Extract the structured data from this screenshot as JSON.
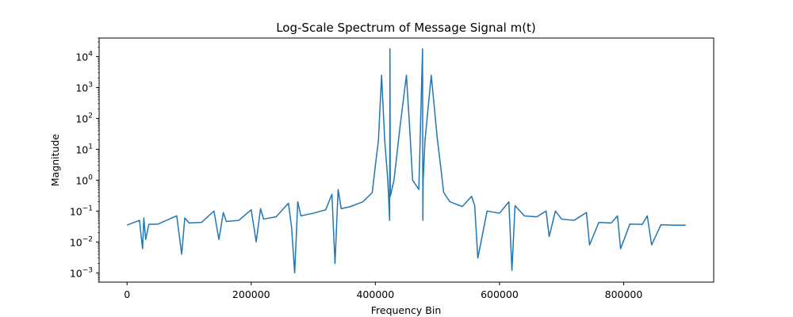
{
  "chart_data": {
    "type": "line",
    "title": "Log-Scale Spectrum of Message Signal m(t)",
    "xlabel": "Frequency Bin",
    "ylabel": "Magnitude",
    "xlim": [
      -45000,
      945000
    ],
    "ylim": [
      0.0005,
      40000
    ],
    "yscale": "log",
    "grid": false,
    "x_ticks": [
      0,
      200000,
      400000,
      600000,
      800000
    ],
    "x_tick_labels": [
      "0",
      "200000",
      "400000",
      "600000",
      "800000"
    ],
    "y_ticks": [
      0.001,
      0.01,
      0.1,
      1,
      10,
      100,
      1000,
      10000
    ],
    "y_tick_labels": [
      {
        "base": "10",
        "exp": "−3"
      },
      {
        "base": "10",
        "exp": "−2"
      },
      {
        "base": "10",
        "exp": "−1"
      },
      {
        "base": "10",
        "exp": "0"
      },
      {
        "base": "10",
        "exp": "1"
      },
      {
        "base": "10",
        "exp": "2"
      },
      {
        "base": "10",
        "exp": "3"
      },
      {
        "base": "10",
        "exp": "4"
      }
    ],
    "color": "#1f77b4",
    "series": [
      {
        "x": [
          0,
          20000,
          25000,
          27000,
          30000,
          35000,
          50000,
          80000,
          88000,
          93000,
          100000,
          120000,
          140000,
          148000,
          155000,
          160000,
          180000,
          200000,
          208000,
          215000,
          220000,
          240000,
          260000,
          265000,
          270000,
          275000,
          280000,
          300000,
          320000,
          330000,
          335000,
          340000,
          345000,
          360000,
          380000,
          395000,
          400000,
          405000,
          410000,
          415000,
          420000,
          423000,
          423500,
          424000,
          430000,
          440000,
          450000,
          455000,
          460000,
          470000,
          476000,
          476500,
          477000,
          480000,
          490000,
          500000,
          505000,
          510000,
          520000,
          540000,
          555000,
          560000,
          565000,
          580000,
          600000,
          615000,
          620000,
          625000,
          640000,
          660000,
          675000,
          680000,
          690000,
          700000,
          720000,
          740000,
          745000,
          760000,
          780000,
          790000,
          795000,
          810000,
          830000,
          838000,
          845000,
          860000,
          880000,
          900000
        ],
        "y": [
          0.035,
          0.05,
          0.006,
          0.06,
          0.012,
          0.037,
          0.038,
          0.07,
          0.004,
          0.06,
          0.041,
          0.043,
          0.1,
          0.012,
          0.09,
          0.046,
          0.05,
          0.11,
          0.01,
          0.12,
          0.055,
          0.065,
          0.18,
          0.03,
          0.001,
          0.2,
          0.07,
          0.085,
          0.11,
          0.35,
          0.002,
          0.5,
          0.12,
          0.14,
          0.2,
          0.4,
          3.0,
          20.0,
          2500,
          20.0,
          1.0,
          0.05,
          18000,
          0.3,
          1.0,
          60.0,
          2500,
          60.0,
          1.0,
          0.5,
          18000,
          0.05,
          1.0,
          20.0,
          2500,
          20.0,
          3.0,
          0.4,
          0.2,
          0.14,
          0.3,
          0.15,
          0.003,
          0.1,
          0.085,
          0.2,
          0.0012,
          0.15,
          0.07,
          0.065,
          0.1,
          0.015,
          0.1,
          0.055,
          0.05,
          0.09,
          0.008,
          0.043,
          0.041,
          0.07,
          0.006,
          0.038,
          0.037,
          0.07,
          0.008,
          0.036,
          0.035,
          0.035
        ]
      }
    ]
  }
}
